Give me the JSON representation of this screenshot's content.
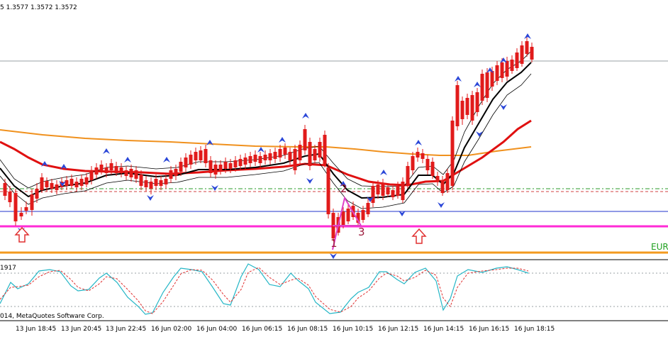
{
  "header": {
    "ohlc_text": "5 1.3577 1.3572 1.3572"
  },
  "indicator": {
    "value_text": "1917"
  },
  "copyright": {
    "text": "014, MetaQuotes Software Corp."
  },
  "symbol_label": {
    "text": "EUR"
  },
  "pattern_labels": [
    "1",
    "2",
    "3"
  ],
  "colors": {
    "bull": "#1f1fd6",
    "bear": "#e11b1b",
    "ma_fast": "#000000",
    "ma_red": "#e01010",
    "ma_orange": "#f0911e",
    "magenta_level": "#ff2bd6",
    "blue_level": "#2233cc",
    "orange_level": "#f39a1f",
    "green_level": "#2a9a2a",
    "arrow_blue": "#2b47d8",
    "arrow_red": "#e03030",
    "stoch_main": "#24b6c6",
    "stoch_signal": "#e03030"
  },
  "icons": [
    "up-arrow-icon",
    "fractal-arrow-icon"
  ],
  "time_axis": [
    "13 Jun 18:45",
    "13 Jun 20:45",
    "13 Jun 22:45",
    "16 Jun 02:00",
    "16 Jun 04:00",
    "16 Jun 06:15",
    "16 Jun 08:15",
    "16 Jun 10:15",
    "16 Jun 12:15",
    "16 Jun 14:15",
    "16 Jun 16:15",
    "16 Jun 18:15"
  ]
}
